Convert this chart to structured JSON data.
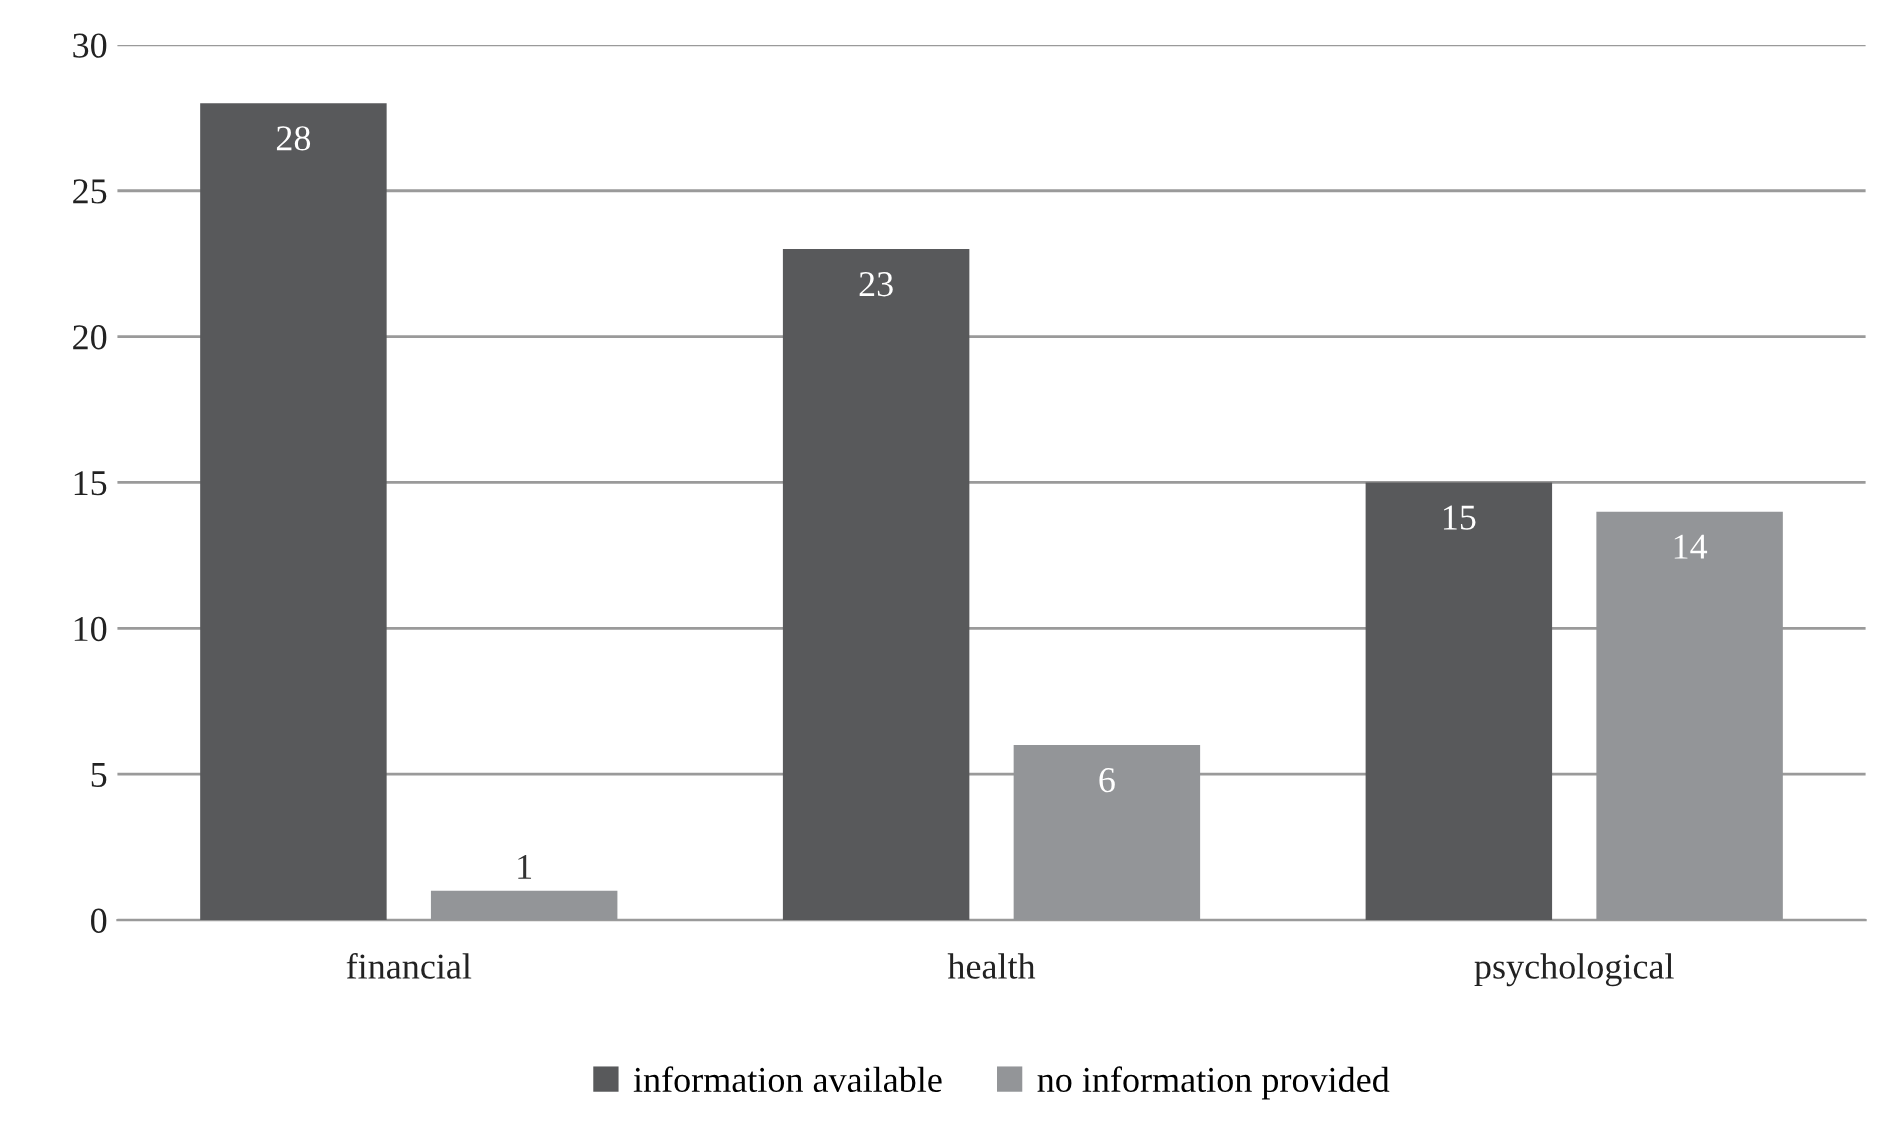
{
  "chart_data": {
    "type": "bar",
    "categories": [
      "financial",
      "health",
      "psychological"
    ],
    "series": [
      {
        "name": "information available",
        "color": "#58595b",
        "values": [
          28,
          23,
          15
        ]
      },
      {
        "name": "no information provided",
        "color": "#939598",
        "values": [
          1,
          6,
          14
        ]
      }
    ],
    "ylim": [
      0,
      30
    ],
    "yticks": [
      0,
      5,
      10,
      15,
      20,
      25,
      30
    ],
    "grid": "y",
    "legend": "bottom",
    "data_labels": true
  }
}
